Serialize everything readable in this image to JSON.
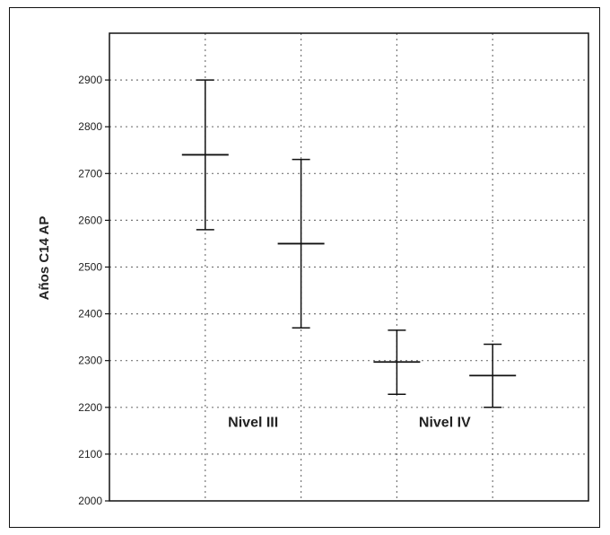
{
  "chart_data": {
    "type": "errorbar",
    "ylabel": "Años C14 AP",
    "xlabel": "",
    "title": "",
    "ylim": [
      2000,
      3000
    ],
    "yticks": [
      2000,
      2100,
      2200,
      2300,
      2400,
      2500,
      2600,
      2700,
      2800,
      2900
    ],
    "grid": true,
    "points": [
      {
        "x": 1,
        "value": 2740,
        "low": 2580,
        "high": 2900
      },
      {
        "x": 2,
        "value": 2550,
        "low": 2370,
        "high": 2730
      },
      {
        "x": 3,
        "value": 2297,
        "low": 2228,
        "high": 2365
      },
      {
        "x": 4,
        "value": 2268,
        "low": 2200,
        "high": 2335
      }
    ],
    "group_labels": [
      {
        "text": "Nivel III",
        "x": 1.5,
        "y": 2170
      },
      {
        "text": "Nivel IV",
        "x": 3.5,
        "y": 2170
      }
    ]
  }
}
